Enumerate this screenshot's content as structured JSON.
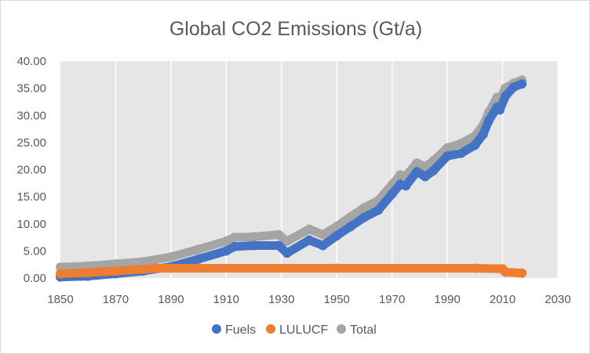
{
  "chart_data": {
    "type": "scatter",
    "title": "Global CO2 Emissions (Gt/a)",
    "xlabel": "",
    "ylabel": "",
    "xlim": [
      1850,
      2030
    ],
    "ylim": [
      0,
      40
    ],
    "x_ticks": [
      "1850",
      "1870",
      "1890",
      "1910",
      "1930",
      "1950",
      "1970",
      "1990",
      "2010",
      "2030"
    ],
    "y_ticks": [
      "0.00",
      "5.00",
      "10.00",
      "15.00",
      "20.00",
      "25.00",
      "30.00",
      "35.00",
      "40.00"
    ],
    "grid": "vertical",
    "plot_background": "#e7e6e6",
    "legend_position": "bottom",
    "series": [
      {
        "name": "Fuels",
        "color": "#4472c4",
        "points": [
          [
            1850,
            0.2
          ],
          [
            1860,
            0.35
          ],
          [
            1870,
            0.8
          ],
          [
            1880,
            1.3
          ],
          [
            1890,
            2.1
          ],
          [
            1900,
            3.5
          ],
          [
            1910,
            5.0
          ],
          [
            1913,
            5.8
          ],
          [
            1920,
            6.0
          ],
          [
            1929,
            6.0
          ],
          [
            1932,
            4.6
          ],
          [
            1940,
            7.0
          ],
          [
            1945,
            6.0
          ],
          [
            1950,
            7.8
          ],
          [
            1955,
            9.5
          ],
          [
            1960,
            11.2
          ],
          [
            1965,
            12.5
          ],
          [
            1970,
            15.5
          ],
          [
            1973,
            17.3
          ],
          [
            1975,
            17.0
          ],
          [
            1979,
            19.6
          ],
          [
            1982,
            18.7
          ],
          [
            1985,
            19.8
          ],
          [
            1990,
            22.5
          ],
          [
            1995,
            23.0
          ],
          [
            2000,
            24.5
          ],
          [
            2003,
            26.5
          ],
          [
            2005,
            29.0
          ],
          [
            2008,
            31.5
          ],
          [
            2009,
            31.0
          ],
          [
            2011,
            33.5
          ],
          [
            2014,
            35.2
          ],
          [
            2017,
            35.8
          ]
        ]
      },
      {
        "name": "LULUCF",
        "color": "#ed7d31",
        "points": [
          [
            1850,
            0.8
          ],
          [
            1860,
            1.0
          ],
          [
            1870,
            1.3
          ],
          [
            1880,
            1.6
          ],
          [
            1885,
            1.8
          ],
          [
            1890,
            1.8
          ],
          [
            1950,
            1.8
          ],
          [
            2000,
            1.8
          ],
          [
            2010,
            1.7
          ],
          [
            2011,
            1.1
          ],
          [
            2017,
            0.9
          ]
        ]
      },
      {
        "name": "Total",
        "color": "#a5a5a5",
        "points": [
          [
            1850,
            2.0
          ],
          [
            1860,
            2.2
          ],
          [
            1870,
            2.6
          ],
          [
            1880,
            3.0
          ],
          [
            1890,
            3.9
          ],
          [
            1900,
            5.3
          ],
          [
            1910,
            6.8
          ],
          [
            1913,
            7.5
          ],
          [
            1920,
            7.6
          ],
          [
            1929,
            8.0
          ],
          [
            1932,
            6.8
          ],
          [
            1940,
            9.0
          ],
          [
            1945,
            8.0
          ],
          [
            1950,
            9.5
          ],
          [
            1955,
            11.3
          ],
          [
            1960,
            13.0
          ],
          [
            1965,
            14.3
          ],
          [
            1970,
            17.2
          ],
          [
            1973,
            19.0
          ],
          [
            1975,
            18.8
          ],
          [
            1979,
            21.2
          ],
          [
            1982,
            20.5
          ],
          [
            1985,
            21.6
          ],
          [
            1990,
            24.0
          ],
          [
            1995,
            24.8
          ],
          [
            2000,
            26.2
          ],
          [
            2003,
            28.2
          ],
          [
            2005,
            30.5
          ],
          [
            2008,
            33.3
          ],
          [
            2009,
            32.8
          ],
          [
            2011,
            35.0
          ],
          [
            2014,
            35.9
          ],
          [
            2017,
            36.5
          ]
        ]
      }
    ]
  }
}
